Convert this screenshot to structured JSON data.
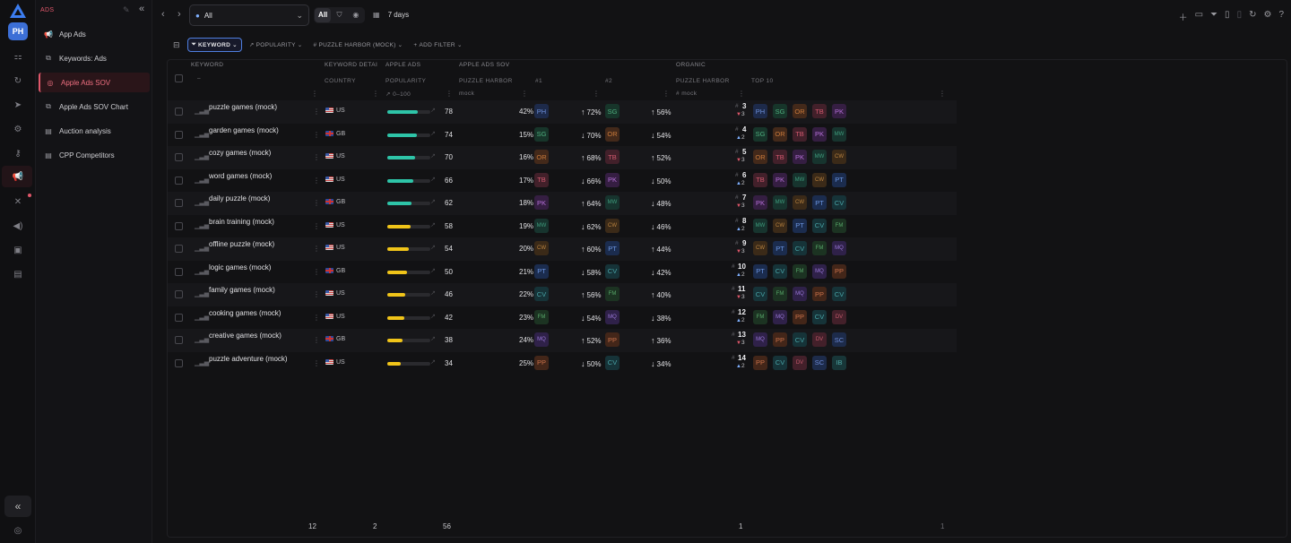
{
  "app": {
    "logo": "app-logo",
    "workspace_badge": "PH"
  },
  "sidebar": {
    "section": "ADS",
    "items": [
      {
        "label": "App Ads",
        "icon": "megaphone-icon",
        "active": false
      },
      {
        "label": "Keywords: Ads",
        "icon": "external-icon",
        "active": false
      },
      {
        "label": "Apple Ads SOV",
        "icon": "target-icon",
        "active": true
      },
      {
        "label": "Apple Ads SOV Chart",
        "icon": "external-icon",
        "active": false
      },
      {
        "label": "Auction analysis",
        "icon": "document-icon",
        "active": false
      },
      {
        "label": "CPP Competitors",
        "icon": "document-icon",
        "active": false
      }
    ]
  },
  "toolbar": {
    "scope_value": "All",
    "segments": [
      "All",
      "shield",
      "person"
    ],
    "period": "7 days"
  },
  "filters": [
    {
      "label": "KEYWORD",
      "active": true
    },
    {
      "label": "POPULARITY",
      "active": false
    },
    {
      "label": "PUZZLE HARBOR (MOCK)",
      "active": false
    },
    {
      "label": "ADD FILTER",
      "active": false
    }
  ],
  "table": {
    "group_headers": {
      "keyword": "KEYWORD",
      "keyword_details": "KEYWORD DETAI",
      "apple_ads": "APPLE ADS",
      "apple_ads_sov": "APPLE ADS SOV",
      "organic": "ORGANIC"
    },
    "sub_headers": {
      "keyword_sort": "–",
      "country": "COUNTRY",
      "popularity": "POPULARITY",
      "puzzle_harbor": "PUZZLE HARBOR",
      "first": "#1",
      "second": "#2",
      "organic_ph": "PUZZLE HARBOR",
      "top10": "TOP 10"
    },
    "filter_hints": {
      "popularity": "0–100",
      "puzzle_harbor": "mock",
      "organic_ph": "mock"
    },
    "rows": [
      {
        "keyword": "puzzle games (mock)",
        "country": "US",
        "popularity": 78,
        "ph_sov": "42%",
        "first": "PH",
        "first_dir": "up",
        "first_sov": "72%",
        "second": "SG",
        "second_dir": "up",
        "second_sov": "56%",
        "rank": "3",
        "rank_dir": "down",
        "rank_chg": "3",
        "top10": [
          "PH",
          "SG",
          "OR",
          "TB",
          "PK"
        ]
      },
      {
        "keyword": "garden games (mock)",
        "country": "GB",
        "popularity": 74,
        "ph_sov": "15%",
        "first": "SG",
        "first_dir": "down",
        "first_sov": "70%",
        "second": "OR",
        "second_dir": "down",
        "second_sov": "54%",
        "rank": "4",
        "rank_dir": "up",
        "rank_chg": "2",
        "top10": [
          "SG",
          "OR",
          "TB",
          "PK",
          "MW"
        ]
      },
      {
        "keyword": "cozy games (mock)",
        "country": "US",
        "popularity": 70,
        "ph_sov": "16%",
        "first": "OR",
        "first_dir": "up",
        "first_sov": "68%",
        "second": "TB",
        "second_dir": "up",
        "second_sov": "52%",
        "rank": "5",
        "rank_dir": "down",
        "rank_chg": "3",
        "top10": [
          "OR",
          "TB",
          "PK",
          "MW",
          "CW"
        ]
      },
      {
        "keyword": "word games (mock)",
        "country": "US",
        "popularity": 66,
        "ph_sov": "17%",
        "first": "TB",
        "first_dir": "down",
        "first_sov": "66%",
        "second": "PK",
        "second_dir": "down",
        "second_sov": "50%",
        "rank": "6",
        "rank_dir": "up",
        "rank_chg": "2",
        "top10": [
          "TB",
          "PK",
          "MW",
          "CW",
          "PT"
        ]
      },
      {
        "keyword": "daily puzzle (mock)",
        "country": "GB",
        "popularity": 62,
        "ph_sov": "18%",
        "first": "PK",
        "first_dir": "up",
        "first_sov": "64%",
        "second": "MW",
        "second_dir": "down",
        "second_sov": "48%",
        "rank": "7",
        "rank_dir": "down",
        "rank_chg": "3",
        "top10": [
          "PK",
          "MW",
          "CW",
          "PT",
          "CV"
        ]
      },
      {
        "keyword": "brain training (mock)",
        "country": "US",
        "popularity": 58,
        "ph_sov": "19%",
        "first": "MW",
        "first_dir": "down",
        "first_sov": "62%",
        "second": "CW",
        "second_dir": "down",
        "second_sov": "46%",
        "rank": "8",
        "rank_dir": "up",
        "rank_chg": "2",
        "top10": [
          "MW",
          "CW",
          "PT",
          "CV",
          "FM"
        ]
      },
      {
        "keyword": "offline puzzle (mock)",
        "country": "US",
        "popularity": 54,
        "ph_sov": "20%",
        "first": "CW",
        "first_dir": "up",
        "first_sov": "60%",
        "second": "PT",
        "second_dir": "up",
        "second_sov": "44%",
        "rank": "9",
        "rank_dir": "down",
        "rank_chg": "3",
        "top10": [
          "CW",
          "PT",
          "CV",
          "FM",
          "MQ"
        ]
      },
      {
        "keyword": "logic games (mock)",
        "country": "GB",
        "popularity": 50,
        "ph_sov": "21%",
        "first": "PT",
        "first_dir": "down",
        "first_sov": "58%",
        "second": "CV",
        "second_dir": "down",
        "second_sov": "42%",
        "rank": "10",
        "rank_dir": "up",
        "rank_chg": "2",
        "top10": [
          "PT",
          "CV",
          "FM",
          "MQ",
          "PP"
        ]
      },
      {
        "keyword": "family games (mock)",
        "country": "US",
        "popularity": 46,
        "ph_sov": "22%",
        "first": "CV",
        "first_dir": "up",
        "first_sov": "56%",
        "second": "FM",
        "second_dir": "up",
        "second_sov": "40%",
        "rank": "11",
        "rank_dir": "down",
        "rank_chg": "3",
        "top10": [
          "CV",
          "FM",
          "MQ",
          "PP",
          "CV"
        ]
      },
      {
        "keyword": "cooking games (mock)",
        "country": "US",
        "popularity": 42,
        "ph_sov": "23%",
        "first": "FM",
        "first_dir": "down",
        "first_sov": "54%",
        "second": "MQ",
        "second_dir": "down",
        "second_sov": "38%",
        "rank": "12",
        "rank_dir": "up",
        "rank_chg": "2",
        "top10": [
          "FM",
          "MQ",
          "PP",
          "CV",
          "DV"
        ]
      },
      {
        "keyword": "creative games (mock)",
        "country": "GB",
        "popularity": 38,
        "ph_sov": "24%",
        "first": "MQ",
        "first_dir": "up",
        "first_sov": "52%",
        "second": "PP",
        "second_dir": "up",
        "second_sov": "36%",
        "rank": "13",
        "rank_dir": "down",
        "rank_chg": "3",
        "top10": [
          "MQ",
          "PP",
          "CV",
          "DV",
          "SC"
        ]
      },
      {
        "keyword": "puzzle adventure (mock)",
        "country": "US",
        "popularity": 34,
        "ph_sov": "25%",
        "first": "PP",
        "first_dir": "down",
        "first_sov": "50%",
        "second": "CV",
        "second_dir": "down",
        "second_sov": "34%",
        "rank": "14",
        "rank_dir": "up",
        "rank_chg": "2",
        "top10": [
          "PP",
          "CV",
          "DV",
          "SC",
          "IB"
        ]
      }
    ],
    "footer": {
      "keyword_count": "12",
      "country_count": "2",
      "popularity_avg": "56",
      "organic_count": "1",
      "top10_count": "1"
    }
  },
  "badge_colors": {
    "PH": [
      "#1d2a4a",
      "#6d8fd8"
    ],
    "SG": [
      "#17352a",
      "#4fae7e"
    ],
    "OR": [
      "#43291a",
      "#c97a3b"
    ],
    "TB": [
      "#42202a",
      "#d0596e"
    ],
    "PK": [
      "#351e42",
      "#b46fd6"
    ],
    "MW": [
      "#17342e",
      "#3f9c7d"
    ],
    "CW": [
      "#3b2a18",
      "#b98340"
    ],
    "PT": [
      "#1b2c4e",
      "#6b95e0"
    ],
    "CV": [
      "#163338",
      "#49a3a6"
    ],
    "FM": [
      "#1c3322",
      "#58a86a"
    ],
    "MQ": [
      "#2f2149",
      "#9a78d8"
    ],
    "PP": [
      "#432619",
      "#c8714a"
    ],
    "DV": [
      "#43202a",
      "#c25a6c"
    ],
    "SC": [
      "#1d2b4a",
      "#6d8ad6"
    ],
    "IB": [
      "#183638",
      "#4ea5a3"
    ]
  },
  "colors": {
    "accent": "#e0576a",
    "pop_high": "#2ec4a8",
    "pop_low": "#f0c419"
  }
}
